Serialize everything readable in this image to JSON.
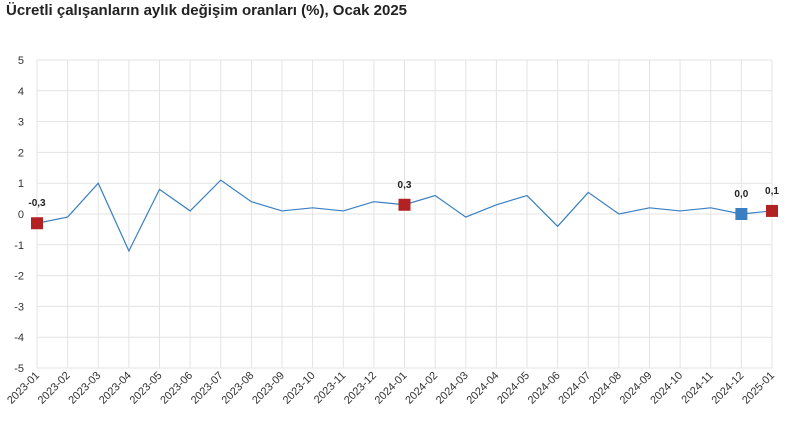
{
  "chart_data": {
    "type": "line",
    "title": "Ücretli çalışanların aylık değişim oranları (%), Ocak 2025",
    "xlabel": "",
    "ylabel": "",
    "ylim": [
      -5,
      5
    ],
    "yticks": [
      "5",
      "4",
      "3",
      "2",
      "1",
      "0",
      "-1",
      "-2",
      "-3",
      "-4",
      "-5"
    ],
    "grid": true,
    "categories": [
      "2023-01",
      "2023-02",
      "2023-03",
      "2023-04",
      "2023-05",
      "2023-06",
      "2023-07",
      "2023-08",
      "2023-09",
      "2023-10",
      "2023-11",
      "2023-12",
      "2024-01",
      "2024-02",
      "2024-03",
      "2024-04",
      "2024-05",
      "2024-06",
      "2024-07",
      "2024-08",
      "2024-09",
      "2024-10",
      "2024-11",
      "2024-12",
      "2025-01"
    ],
    "series": [
      {
        "color": "#3a7fc1",
        "values": [
          -0.3,
          -0.1,
          1.0,
          -1.2,
          0.8,
          0.1,
          1.1,
          0.4,
          0.1,
          0.2,
          0.1,
          0.4,
          0.3,
          0.6,
          -0.1,
          0.3,
          0.6,
          -0.4,
          0.7,
          0.0,
          0.2,
          0.1,
          0.2,
          0.0,
          0.1
        ]
      }
    ],
    "highlights": [
      {
        "index": 0,
        "label": "-0,3",
        "color": "#b22222"
      },
      {
        "index": 12,
        "label": "0,3",
        "color": "#b22222"
      },
      {
        "index": 23,
        "label": "0,0",
        "color": "#3a7fc1"
      },
      {
        "index": 24,
        "label": "0,1",
        "color": "#b22222"
      }
    ]
  }
}
